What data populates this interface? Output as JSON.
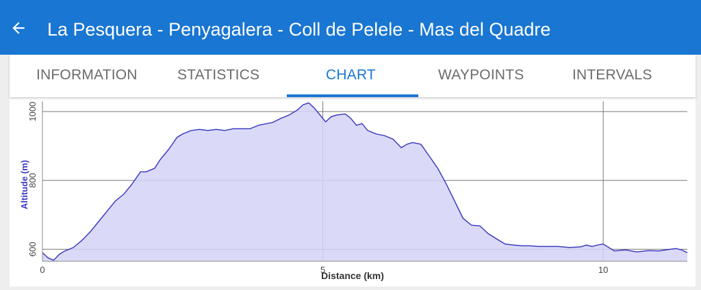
{
  "header": {
    "back_icon": "arrow-left-icon",
    "title": "La Pesquera - Penyagalera - Coll de Pelele - Mas del Quadre"
  },
  "tabs": [
    {
      "label": "INFORMATION",
      "active": false
    },
    {
      "label": "STATISTICS",
      "active": false
    },
    {
      "label": "CHART",
      "active": true
    },
    {
      "label": "WAYPOINTS",
      "active": false
    },
    {
      "label": "INTERVALS",
      "active": false
    }
  ],
  "colors": {
    "primary": "#1976d2",
    "line": "#3d3dbf",
    "fill": "#d3d3f7",
    "axis_title": "#3b3bc4"
  },
  "chart_data": {
    "type": "area",
    "xlabel": "Distance (km)",
    "ylabel": "Altitude (m)",
    "xlim": [
      0,
      11.5
    ],
    "ylim": [
      565,
      1030
    ],
    "x_ticks": [
      0,
      5,
      10
    ],
    "y_ticks": [
      600,
      800,
      1000
    ],
    "grid": true,
    "series": [
      {
        "x": [
          0,
          0.1,
          0.2,
          0.3,
          0.4,
          0.55,
          0.7,
          0.85,
          1.0,
          1.15,
          1.3,
          1.45,
          1.6,
          1.75,
          1.85,
          2.0,
          2.1,
          2.25,
          2.4,
          2.5,
          2.65,
          2.8,
          2.95,
          3.1,
          3.25,
          3.4,
          3.55,
          3.7,
          3.85,
          4.0,
          4.1,
          4.25,
          4.4,
          4.55,
          4.65,
          4.75,
          4.85,
          4.95,
          5.05,
          5.15,
          5.25,
          5.4,
          5.5,
          5.6,
          5.7,
          5.8,
          5.95,
          6.1,
          6.25,
          6.4,
          6.5,
          6.6,
          6.75,
          6.9,
          7.05,
          7.2,
          7.35,
          7.5,
          7.65,
          7.8,
          7.95,
          8.1,
          8.25,
          8.4,
          8.55,
          8.7,
          8.85,
          9.0,
          9.2,
          9.4,
          9.6,
          9.7,
          9.8,
          9.9,
          10.0,
          10.1,
          10.2,
          10.4,
          10.6,
          10.8,
          11.0,
          11.2,
          11.3,
          11.4,
          11.5
        ],
        "y": [
          590,
          575,
          568,
          585,
          595,
          605,
          625,
          650,
          680,
          710,
          740,
          760,
          790,
          825,
          825,
          835,
          860,
          890,
          925,
          935,
          945,
          948,
          945,
          948,
          945,
          950,
          950,
          950,
          960,
          965,
          968,
          980,
          990,
          1005,
          1020,
          1025,
          1010,
          990,
          970,
          985,
          990,
          993,
          980,
          960,
          965,
          945,
          935,
          930,
          920,
          895,
          905,
          910,
          905,
          870,
          835,
          790,
          740,
          690,
          670,
          668,
          645,
          630,
          615,
          612,
          610,
          610,
          608,
          608,
          608,
          605,
          607,
          612,
          608,
          612,
          615,
          605,
          595,
          598,
          592,
          596,
          595,
          600,
          602,
          598,
          590
        ]
      }
    ]
  }
}
